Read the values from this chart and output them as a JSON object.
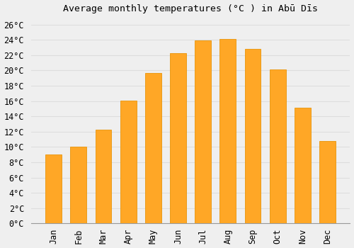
{
  "title": "Average monthly temperatures (°C ) in Abū Dīs",
  "months": [
    "Jan",
    "Feb",
    "Mar",
    "Apr",
    "May",
    "Jun",
    "Jul",
    "Aug",
    "Sep",
    "Oct",
    "Nov",
    "Dec"
  ],
  "values": [
    9,
    10,
    12.3,
    16.1,
    19.7,
    22.3,
    23.9,
    24.1,
    22.8,
    20.1,
    15.1,
    10.8
  ],
  "bar_color": "#FFA726",
  "bar_edge_color": "#E8950A",
  "background_color": "#EFEFEF",
  "grid_color": "#DDDDDD",
  "ylim": [
    0,
    27
  ],
  "yticks": [
    0,
    2,
    4,
    6,
    8,
    10,
    12,
    14,
    16,
    18,
    20,
    22,
    24,
    26
  ],
  "title_fontsize": 9.5,
  "tick_fontsize": 8.5,
  "bar_width": 0.65
}
